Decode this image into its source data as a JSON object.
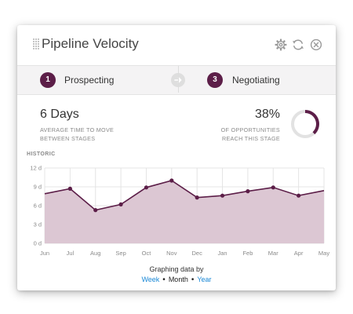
{
  "widget": {
    "title": "Pipeline Velocity",
    "controls": [
      {
        "name": "settings",
        "icon": "gear-icon"
      },
      {
        "name": "refresh",
        "icon": "refresh-icon"
      },
      {
        "name": "close",
        "icon": "close-icon"
      }
    ]
  },
  "stages": {
    "from": {
      "number": "1",
      "label": "Prospecting"
    },
    "to": {
      "number": "3",
      "label": "Negotiating"
    },
    "arrow_icon": "arrow-right-icon"
  },
  "metrics": {
    "time": {
      "value": "6 Days",
      "caption_line1": "AVERAGE TIME TO MOVE",
      "caption_line2": "BETWEEN STAGES"
    },
    "conversion": {
      "value": "38%",
      "caption_line1": "OF OPPORTUNITIES",
      "caption_line2": "REACH THIS STAGE",
      "fraction": 0.38
    }
  },
  "chart_label": "HISTORIC",
  "chart_data": {
    "type": "area",
    "categories": [
      "Jun",
      "Jul",
      "Aug",
      "Sep",
      "Oct",
      "Nov",
      "Dec",
      "Jan",
      "Feb",
      "Mar",
      "Apr",
      "May"
    ],
    "values": [
      7.9,
      8.7,
      5.3,
      6.2,
      8.9,
      10.0,
      7.3,
      7.6,
      8.3,
      8.9,
      7.6,
      8.4
    ],
    "y_ticks": [
      "0 d",
      "3 d",
      "6 d",
      "9 d",
      "12 d"
    ],
    "y_tick_values": [
      0,
      3,
      6,
      9,
      12
    ],
    "ylim": [
      0,
      12
    ],
    "grid": true,
    "colors": {
      "line": "#5c1e48",
      "fill": "#dcc7d3",
      "grid": "#e4e4e4"
    }
  },
  "graphing": {
    "label": "Graphing data by",
    "options": [
      {
        "label": "Week",
        "selected": false
      },
      {
        "label": "Month",
        "selected": true
      },
      {
        "label": "Year",
        "selected": false
      }
    ],
    "separator": "•"
  },
  "colors": {
    "accent": "#5c1e48",
    "link": "#1a88d6",
    "donut_track": "#e2e2e2"
  }
}
